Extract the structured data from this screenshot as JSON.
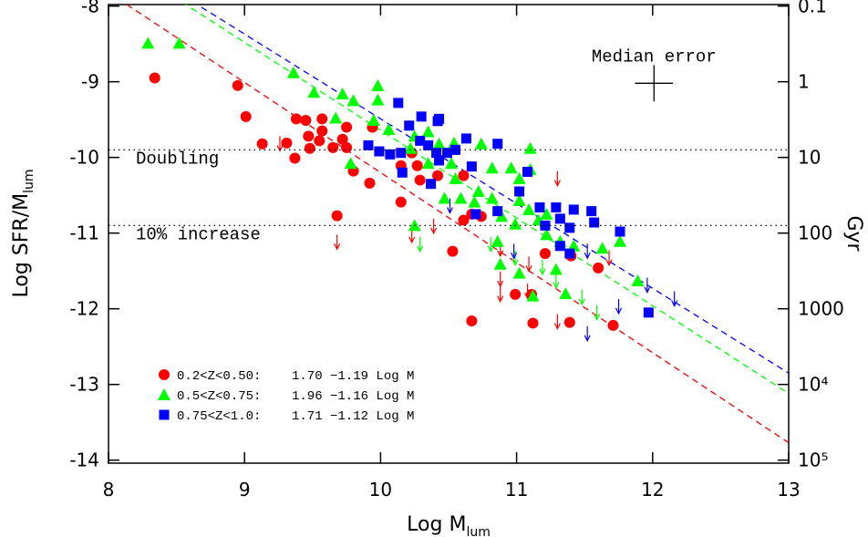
{
  "chart_data": {
    "type": "scatter",
    "xlabel": "Log M",
    "xlabel_sub": "lum",
    "ylabel": "Log SFR/M",
    "ylabel_sub": "lum",
    "y2label": "Gyr",
    "xlim": [
      8,
      13
    ],
    "xticks": [
      8,
      9,
      10,
      11,
      12,
      13
    ],
    "ylim": [
      -14.04,
      -7.98
    ],
    "yticks": [
      -14,
      -13,
      -12,
      -11,
      -10,
      -9,
      -8
    ],
    "y2scale": "log",
    "y2lim": [
      0.0955,
      109648
    ],
    "y2ticks": [
      0.1,
      1,
      10,
      100,
      1000,
      {
        "value": 10000,
        "label": "10⁴"
      },
      {
        "value": 100000,
        "label": "10⁵"
      }
    ],
    "hlines": [
      {
        "y": -9.9,
        "label": "Doubling"
      },
      {
        "y": -10.9,
        "label": "10% increase"
      }
    ],
    "median_error": {
      "label": "Median error",
      "x": 12.01,
      "y": -9.02,
      "xerr": 0.14,
      "yerr": 0.24
    },
    "series": [
      {
        "name": "0.2<Z<0.50:",
        "color": "#ff0000",
        "marker": "circle",
        "fit": {
          "intercept": 1.7,
          "slope": -1.19,
          "label": "1.70 −1.19 Log M"
        },
        "x": [
          8.34,
          8.95,
          9.01,
          9.38,
          9.57,
          9.45,
          9.57,
          9.47,
          9.13,
          9.31,
          9.48,
          9.37,
          9.55,
          9.75,
          9.72,
          9.75,
          9.65,
          9.8,
          9.94,
          9.92,
          9.68,
          10.15,
          10.27,
          10.15,
          10.29,
          10.23,
          10.42,
          10.61,
          10.61,
          10.74,
          10.67,
          10.53,
          10.99,
          11.11,
          11.21,
          11.4,
          10.67,
          11.12,
          11.39,
          11.6,
          11.71
        ],
        "values": [
          -8.95,
          -9.05,
          -9.46,
          -9.49,
          -9.49,
          -9.51,
          -9.65,
          -9.72,
          -9.82,
          -9.81,
          -9.88,
          -10.01,
          -9.78,
          -9.6,
          -9.76,
          -9.87,
          -9.87,
          -10.18,
          -9.6,
          -10.34,
          -10.77,
          -10.11,
          -10.11,
          -10.59,
          -10.3,
          -9.94,
          -10.24,
          -10.24,
          -10.83,
          -10.78,
          -10.75,
          -11.24,
          -11.81,
          -11.81,
          -11.27,
          -11.3,
          -12.16,
          -12.19,
          -12.18,
          -11.46,
          -12.22
        ],
        "limits_x": [
          9.26,
          9.68,
          10.23,
          10.39,
          10.88,
          11.09,
          10.88,
          11.08,
          11.3,
          11.68,
          11.3,
          10.88
        ],
        "limits_values": [
          -9.72,
          -11.02,
          -10.93,
          -10.81,
          -11.11,
          -11.31,
          -11.51,
          -11.67,
          -10.18,
          -11.23,
          -12.07,
          -11.71
        ]
      },
      {
        "name": "0.5<Z<0.75:",
        "color": "#00ff00",
        "marker": "triangle",
        "fit": {
          "intercept": 1.96,
          "slope": -1.16,
          "label": "1.96 −1.16 Log M"
        },
        "x": [
          8.29,
          8.52,
          9.36,
          9.51,
          9.72,
          9.8,
          9.98,
          9.98,
          9.67,
          9.95,
          10.06,
          10.25,
          10.35,
          10.22,
          10.43,
          10.54,
          10.74,
          10.35,
          9.78,
          10.52,
          10.55,
          10.72,
          10.82,
          10.96,
          11.02,
          11.1,
          10.47,
          10.59,
          10.69,
          10.82,
          11.02,
          11.09,
          11.22,
          10.89,
          11.16,
          11.22,
          11.32,
          11.42,
          11.63,
          11.76,
          10.25,
          10.88,
          11.02,
          11.29,
          11.36,
          11.12,
          11.89,
          10.99,
          10.86,
          11.1
        ],
        "values": [
          -8.49,
          -8.49,
          -8.88,
          -9.14,
          -9.16,
          -9.25,
          -9.05,
          -9.24,
          -9.48,
          -9.51,
          -9.63,
          -9.72,
          -9.66,
          -9.88,
          -9.82,
          -9.81,
          -9.82,
          -10.08,
          -10.08,
          -10.08,
          -10.28,
          -10.45,
          -10.14,
          -10.14,
          -10.28,
          -10.16,
          -10.54,
          -10.54,
          -10.59,
          -10.54,
          -10.57,
          -10.69,
          -10.75,
          -10.78,
          -10.83,
          -11.02,
          -11.11,
          -11.17,
          -11.2,
          -11.11,
          -10.9,
          -11.41,
          -11.53,
          -11.48,
          -11.8,
          -11.83,
          -11.63,
          -10.88,
          -11.11,
          -9.88
        ],
        "limits_x": [
          10.29,
          10.81,
          10.99,
          11.29,
          11.48,
          11.59,
          11.19
        ],
        "limits_values": [
          -11.05,
          -11.05,
          -11.23,
          -11.53,
          -11.75,
          -11.95,
          -11.35
        ]
      },
      {
        "name": "0.75<Z<1.0:",
        "color": "#0000ff",
        "marker": "square",
        "fit": {
          "intercept": 1.71,
          "slope": -1.12,
          "label": "1.71 −1.12 Log M"
        },
        "x": [
          10.13,
          10.3,
          10.21,
          10.42,
          10.43,
          9.91,
          9.99,
          10.07,
          10.15,
          10.29,
          10.35,
          10.41,
          10.49,
          10.43,
          10.63,
          10.86,
          10.67,
          10.16,
          10.37,
          10.86,
          11.08,
          11.02,
          11.17,
          11.29,
          11.42,
          11.32,
          11.21,
          11.55,
          11.57,
          11.76,
          11.39,
          11.32,
          11.39,
          11.97,
          10.7,
          10.55
        ],
        "values": [
          -9.28,
          -9.46,
          -9.58,
          -9.52,
          -9.49,
          -9.84,
          -9.92,
          -9.96,
          -9.94,
          -9.78,
          -9.84,
          -9.94,
          -9.94,
          -10.04,
          -9.75,
          -9.82,
          -10.12,
          -10.2,
          -10.35,
          -10.71,
          -10.19,
          -10.45,
          -10.66,
          -10.66,
          -10.69,
          -10.81,
          -10.9,
          -10.71,
          -10.86,
          -10.98,
          -10.93,
          -11.17,
          -11.27,
          -12.05,
          -10.75,
          -9.9
        ],
        "limits_x": [
          10.51,
          10.98,
          11.52,
          11.75,
          11.96,
          12.16,
          11.52
        ],
        "limits_values": [
          -10.54,
          -11.14,
          -11.14,
          -11.87,
          -11.59,
          -11.77,
          -12.23
        ]
      }
    ]
  }
}
